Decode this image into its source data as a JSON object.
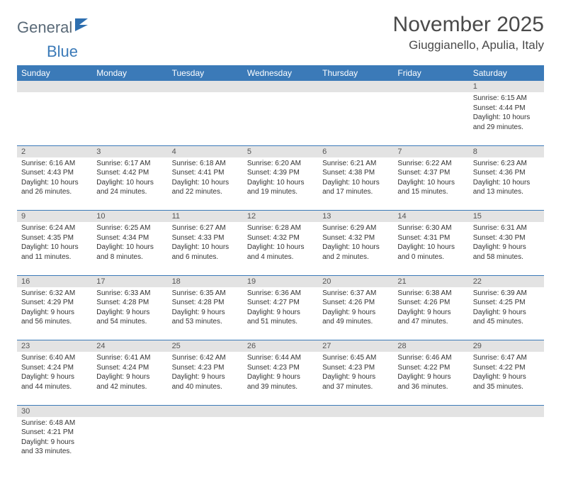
{
  "logo": {
    "part1": "General",
    "part2": "Blue"
  },
  "title": "November 2025",
  "location": "Giuggianello, Apulia, Italy",
  "header_bg": "#3b7ab8",
  "daynum_bg": "#e3e3e3",
  "row_border": "#3b7ab8",
  "day_names": [
    "Sunday",
    "Monday",
    "Tuesday",
    "Wednesday",
    "Thursday",
    "Friday",
    "Saturday"
  ],
  "weeks": [
    [
      null,
      null,
      null,
      null,
      null,
      null,
      {
        "n": "1",
        "sunrise": "6:15 AM",
        "sunset": "4:44 PM",
        "daylight": "10 hours and 29 minutes."
      }
    ],
    [
      {
        "n": "2",
        "sunrise": "6:16 AM",
        "sunset": "4:43 PM",
        "daylight": "10 hours and 26 minutes."
      },
      {
        "n": "3",
        "sunrise": "6:17 AM",
        "sunset": "4:42 PM",
        "daylight": "10 hours and 24 minutes."
      },
      {
        "n": "4",
        "sunrise": "6:18 AM",
        "sunset": "4:41 PM",
        "daylight": "10 hours and 22 minutes."
      },
      {
        "n": "5",
        "sunrise": "6:20 AM",
        "sunset": "4:39 PM",
        "daylight": "10 hours and 19 minutes."
      },
      {
        "n": "6",
        "sunrise": "6:21 AM",
        "sunset": "4:38 PM",
        "daylight": "10 hours and 17 minutes."
      },
      {
        "n": "7",
        "sunrise": "6:22 AM",
        "sunset": "4:37 PM",
        "daylight": "10 hours and 15 minutes."
      },
      {
        "n": "8",
        "sunrise": "6:23 AM",
        "sunset": "4:36 PM",
        "daylight": "10 hours and 13 minutes."
      }
    ],
    [
      {
        "n": "9",
        "sunrise": "6:24 AM",
        "sunset": "4:35 PM",
        "daylight": "10 hours and 11 minutes."
      },
      {
        "n": "10",
        "sunrise": "6:25 AM",
        "sunset": "4:34 PM",
        "daylight": "10 hours and 8 minutes."
      },
      {
        "n": "11",
        "sunrise": "6:27 AM",
        "sunset": "4:33 PM",
        "daylight": "10 hours and 6 minutes."
      },
      {
        "n": "12",
        "sunrise": "6:28 AM",
        "sunset": "4:32 PM",
        "daylight": "10 hours and 4 minutes."
      },
      {
        "n": "13",
        "sunrise": "6:29 AM",
        "sunset": "4:32 PM",
        "daylight": "10 hours and 2 minutes."
      },
      {
        "n": "14",
        "sunrise": "6:30 AM",
        "sunset": "4:31 PM",
        "daylight": "10 hours and 0 minutes."
      },
      {
        "n": "15",
        "sunrise": "6:31 AM",
        "sunset": "4:30 PM",
        "daylight": "9 hours and 58 minutes."
      }
    ],
    [
      {
        "n": "16",
        "sunrise": "6:32 AM",
        "sunset": "4:29 PM",
        "daylight": "9 hours and 56 minutes."
      },
      {
        "n": "17",
        "sunrise": "6:33 AM",
        "sunset": "4:28 PM",
        "daylight": "9 hours and 54 minutes."
      },
      {
        "n": "18",
        "sunrise": "6:35 AM",
        "sunset": "4:28 PM",
        "daylight": "9 hours and 53 minutes."
      },
      {
        "n": "19",
        "sunrise": "6:36 AM",
        "sunset": "4:27 PM",
        "daylight": "9 hours and 51 minutes."
      },
      {
        "n": "20",
        "sunrise": "6:37 AM",
        "sunset": "4:26 PM",
        "daylight": "9 hours and 49 minutes."
      },
      {
        "n": "21",
        "sunrise": "6:38 AM",
        "sunset": "4:26 PM",
        "daylight": "9 hours and 47 minutes."
      },
      {
        "n": "22",
        "sunrise": "6:39 AM",
        "sunset": "4:25 PM",
        "daylight": "9 hours and 45 minutes."
      }
    ],
    [
      {
        "n": "23",
        "sunrise": "6:40 AM",
        "sunset": "4:24 PM",
        "daylight": "9 hours and 44 minutes."
      },
      {
        "n": "24",
        "sunrise": "6:41 AM",
        "sunset": "4:24 PM",
        "daylight": "9 hours and 42 minutes."
      },
      {
        "n": "25",
        "sunrise": "6:42 AM",
        "sunset": "4:23 PM",
        "daylight": "9 hours and 40 minutes."
      },
      {
        "n": "26",
        "sunrise": "6:44 AM",
        "sunset": "4:23 PM",
        "daylight": "9 hours and 39 minutes."
      },
      {
        "n": "27",
        "sunrise": "6:45 AM",
        "sunset": "4:23 PM",
        "daylight": "9 hours and 37 minutes."
      },
      {
        "n": "28",
        "sunrise": "6:46 AM",
        "sunset": "4:22 PM",
        "daylight": "9 hours and 36 minutes."
      },
      {
        "n": "29",
        "sunrise": "6:47 AM",
        "sunset": "4:22 PM",
        "daylight": "9 hours and 35 minutes."
      }
    ],
    [
      {
        "n": "30",
        "sunrise": "6:48 AM",
        "sunset": "4:21 PM",
        "daylight": "9 hours and 33 minutes."
      },
      null,
      null,
      null,
      null,
      null,
      null
    ]
  ],
  "labels": {
    "sunrise": "Sunrise:",
    "sunset": "Sunset:",
    "daylight": "Daylight:"
  }
}
